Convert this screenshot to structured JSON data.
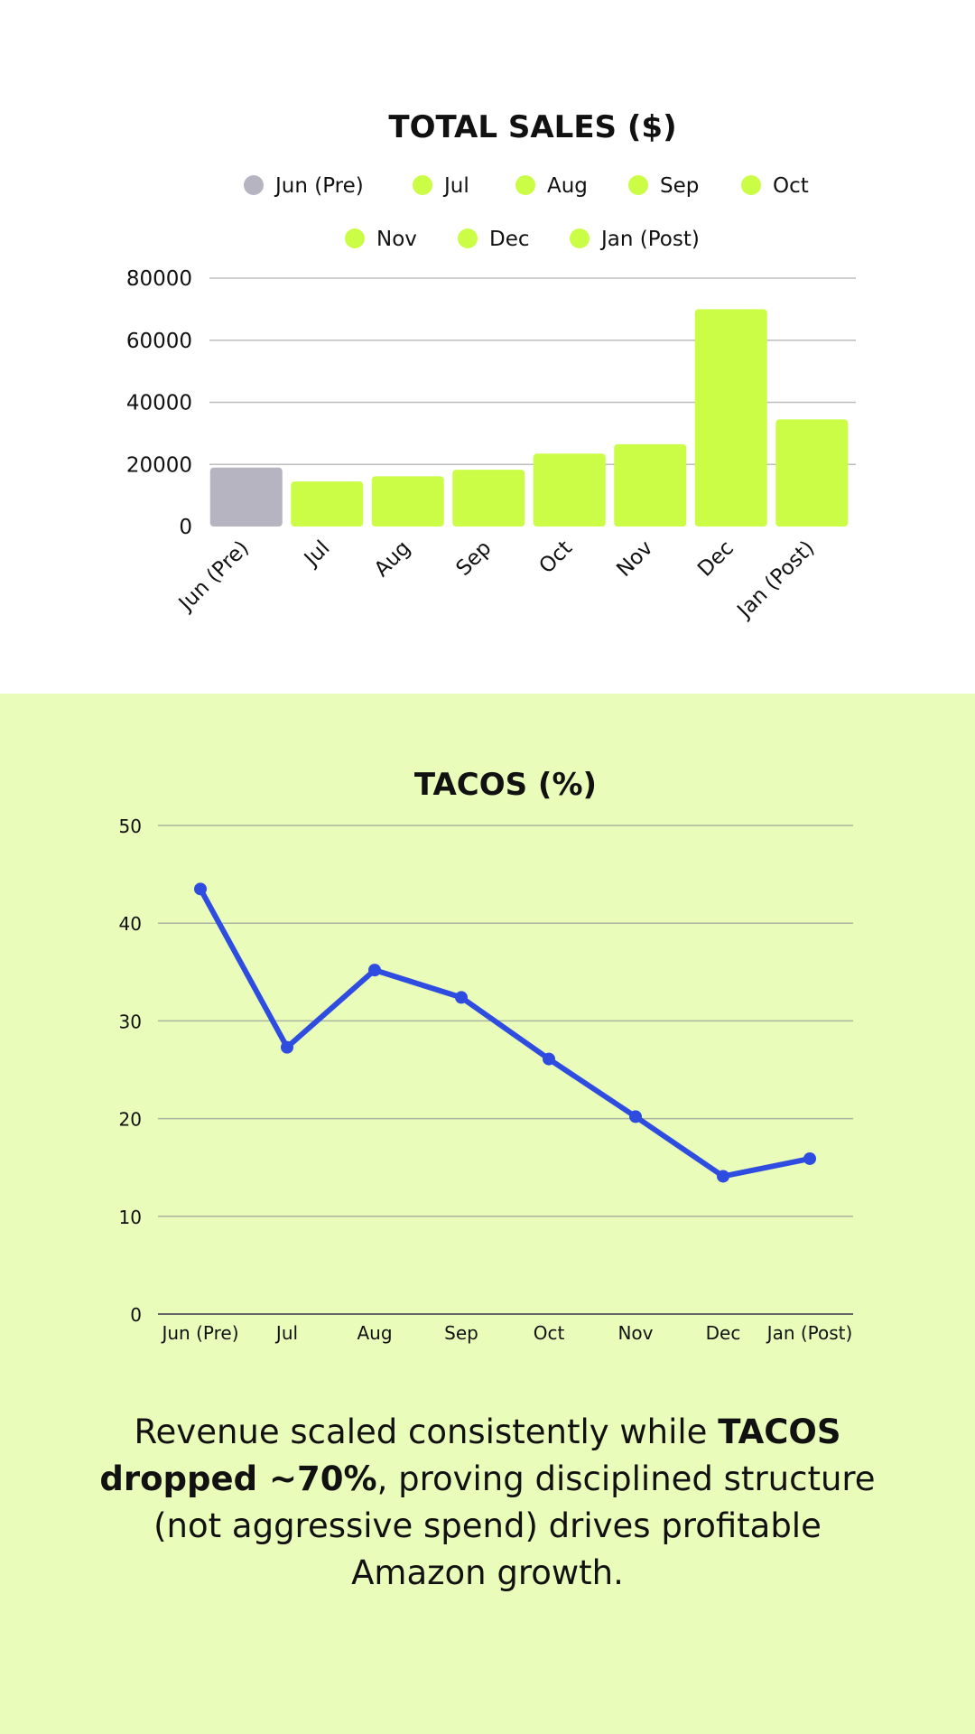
{
  "colors": {
    "pre_bar": "#b6b4c1",
    "bar": "#cbfd47",
    "line": "#2f4ce0",
    "bottom_bg": "#eafcb9",
    "grid": "#bdbdbd"
  },
  "caption": {
    "part1": "Revenue scaled consistently while ",
    "bold": "TACOS dropped ~70%",
    "part2": ", proving disciplined structure (not aggressive spend) drives profitable Amazon growth."
  },
  "chart_data": [
    {
      "type": "bar",
      "title": "TOTAL SALES ($)",
      "categories": [
        "Jun (Pre)",
        "Jul",
        "Aug",
        "Sep",
        "Oct",
        "Nov",
        "Dec",
        "Jan (Post)"
      ],
      "values": [
        19000,
        14500,
        16200,
        18300,
        23500,
        26500,
        70000,
        34500
      ],
      "bar_colors": [
        "#b6b4c1",
        "#cbfd47",
        "#cbfd47",
        "#cbfd47",
        "#cbfd47",
        "#cbfd47",
        "#cbfd47",
        "#cbfd47"
      ],
      "legend": [
        "Jun (Pre)",
        "Jul",
        "Aug",
        "Sep",
        "Oct",
        "Nov",
        "Dec",
        "Jan (Post)"
      ],
      "legend_position": "top",
      "ylim": [
        0,
        80000
      ],
      "yticks": [
        0,
        20000,
        40000,
        60000,
        80000
      ],
      "grid": true
    },
    {
      "type": "line",
      "title": "TACOS (%)",
      "x": [
        "Jun (Pre)",
        "Jul",
        "Aug",
        "Sep",
        "Oct",
        "Nov",
        "Dec",
        "Jan (Post)"
      ],
      "values": [
        43.5,
        27.3,
        35.2,
        32.4,
        26.1,
        20.2,
        14.1,
        15.9
      ],
      "ylim": [
        0,
        50
      ],
      "yticks": [
        0,
        10,
        20,
        30,
        40,
        50
      ],
      "grid": true
    }
  ]
}
